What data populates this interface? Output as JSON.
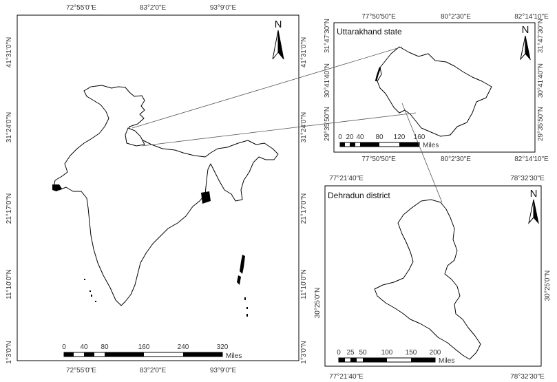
{
  "india_map": {
    "top_ticks": [
      "72°55'0\"E",
      "83°2'0\"E",
      "93°9'0\"E"
    ],
    "bottom_ticks": [
      "72°55'0\"E",
      "83°2'0\"E",
      "93°9'0\"E"
    ],
    "left_ticks": [
      "41°31'0\"N",
      "31°24'0\"N",
      "21°17'0\"N",
      "11°10'0\"N",
      "1°3'0\"N"
    ],
    "right_ticks": [
      "41°31'0\"N",
      "31°24'0\"N",
      "21°17'0\"N",
      "11°10'0\"N",
      "1°3'0\"N"
    ],
    "north_label": "N",
    "scale_labels": [
      "0",
      "40",
      "80",
      "160",
      "240",
      "320"
    ],
    "scale_unit": "Miles"
  },
  "uttarakhand_map": {
    "title": "Uttarakhand state",
    "top_ticks": [
      "77°50'50\"E",
      "80°2'30\"E",
      "82°14'10\"E"
    ],
    "bottom_ticks": [
      "77°50'50\"E",
      "80°2'30\"E",
      "82°14'10\"E"
    ],
    "left_ticks": [
      "31°47'30\"N",
      "30°41'40\"N",
      "29°35'50\"N"
    ],
    "right_ticks": [
      "31°47'30\"N",
      "30°41'40\"N",
      "29°35'50\"N"
    ],
    "north_label": "N",
    "scale_labels": [
      "0",
      "20",
      "40",
      "80",
      "120",
      "160"
    ],
    "scale_unit": "Miles"
  },
  "dehradun_map": {
    "title": "Dehradun district",
    "top_ticks": [
      "77°21'40\"E",
      "78°32'30\"E"
    ],
    "bottom_ticks": [
      "77°21'40\"E",
      "78°32'30\"E"
    ],
    "left_ticks": [
      "30°25'0\"N"
    ],
    "right_ticks": [
      "30°25'0\"N"
    ],
    "north_label": "N",
    "scale_labels": [
      "0",
      "25",
      "50",
      "100",
      "150",
      "200"
    ],
    "scale_unit": "Miles"
  }
}
